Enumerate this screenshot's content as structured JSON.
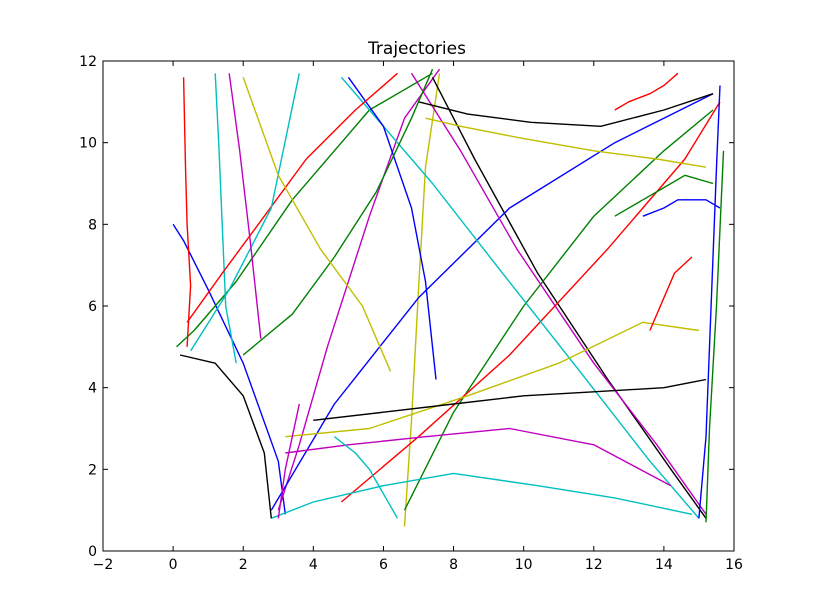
{
  "chart_data": {
    "type": "line",
    "title": "Trajectories",
    "xlabel": "",
    "ylabel": "",
    "xlim": [
      -2,
      16
    ],
    "ylim": [
      0,
      12
    ],
    "xticks": [
      -2,
      0,
      2,
      4,
      6,
      8,
      10,
      12,
      14,
      16
    ],
    "yticks": [
      0,
      2,
      4,
      6,
      8,
      10,
      12
    ],
    "xtick_labels": [
      "−2",
      "0",
      "2",
      "4",
      "6",
      "8",
      "10",
      "12",
      "14",
      "16"
    ],
    "ytick_labels": [
      "0",
      "2",
      "4",
      "6",
      "8",
      "10",
      "12"
    ],
    "grid": false,
    "legend": "none",
    "color_cycle": [
      "#0000ff",
      "#008000",
      "#ff0000",
      "#00bfbf",
      "#bf00bf",
      "#bfbf00",
      "#000000"
    ],
    "series": [
      {
        "x": [
          0.0,
          0.3,
          1.0,
          2.0,
          3.0,
          3.2
        ],
        "y": [
          8.0,
          7.6,
          6.4,
          4.6,
          2.2,
          0.9
        ]
      },
      {
        "x": [
          0.1,
          0.6,
          1.8,
          3.4,
          5.6,
          7.4
        ],
        "y": [
          5.0,
          5.4,
          6.6,
          8.6,
          10.8,
          11.7
        ]
      },
      {
        "x": [
          0.3,
          0.35,
          0.4,
          0.5,
          0.4
        ],
        "y": [
          11.6,
          9.5,
          8.0,
          6.5,
          5.0
        ]
      },
      {
        "x": [
          1.2,
          1.3,
          1.4,
          1.5,
          1.8
        ],
        "y": [
          11.7,
          10.0,
          8.0,
          6.0,
          4.6
        ]
      },
      {
        "x": [
          3.0,
          3.6,
          4.4,
          5.6,
          6.6,
          7.6
        ],
        "y": [
          1.0,
          2.6,
          5.0,
          8.2,
          10.6,
          11.8
        ]
      },
      {
        "x": [
          6.6,
          6.8,
          7.0,
          7.2,
          7.6
        ],
        "y": [
          0.6,
          3.2,
          6.4,
          9.4,
          11.7
        ]
      },
      {
        "x": [
          7.4,
          8.6,
          10.4,
          12.4,
          14.2,
          15.2
        ],
        "y": [
          11.6,
          9.6,
          6.8,
          4.2,
          2.0,
          0.8
        ]
      },
      {
        "x": [
          2.8,
          4.6,
          7.0,
          9.6,
          12.6,
          15.4
        ],
        "y": [
          1.0,
          3.6,
          6.2,
          8.4,
          10.0,
          11.2
        ]
      },
      {
        "x": [
          6.6,
          8.0,
          10.0,
          12.0,
          14.0,
          15.4
        ],
        "y": [
          1.0,
          3.4,
          6.0,
          8.2,
          9.8,
          10.8
        ]
      },
      {
        "x": [
          4.8,
          7.0,
          9.6,
          12.4,
          14.6,
          15.6
        ],
        "y": [
          1.2,
          2.8,
          4.8,
          7.4,
          9.6,
          11.0
        ]
      },
      {
        "x": [
          15.0,
          13.6,
          11.6,
          9.4,
          7.4,
          4.8
        ],
        "y": [
          0.8,
          2.2,
          4.4,
          6.8,
          9.0,
          11.6
        ]
      },
      {
        "x": [
          15.2,
          13.8,
          12.0,
          9.8,
          8.2,
          6.8
        ],
        "y": [
          0.9,
          2.6,
          4.6,
          7.4,
          9.8,
          11.7
        ]
      },
      {
        "x": [
          7.2,
          8.2,
          10.0,
          12.0,
          13.8,
          15.2
        ],
        "y": [
          10.6,
          10.4,
          10.1,
          9.8,
          9.6,
          9.4
        ]
      },
      {
        "x": [
          7.0,
          8.4,
          10.2,
          12.2,
          14.0,
          15.4
        ],
        "y": [
          11.0,
          10.7,
          10.5,
          10.4,
          10.8,
          11.2
        ]
      },
      {
        "x": [
          15.6,
          15.5,
          15.4,
          15.3,
          15.2,
          15.0
        ],
        "y": [
          11.4,
          9.4,
          7.2,
          5.0,
          2.8,
          0.8
        ]
      },
      {
        "x": [
          15.2,
          15.3,
          15.5,
          15.7
        ],
        "y": [
          0.7,
          3.0,
          6.0,
          9.8
        ]
      },
      {
        "x": [
          14.4,
          14.0,
          13.6,
          13.0,
          12.6
        ],
        "y": [
          11.7,
          11.4,
          11.2,
          11.0,
          10.8
        ]
      },
      {
        "x": [
          2.8,
          4.0,
          6.0,
          8.0,
          10.4,
          12.6,
          14.8
        ],
        "y": [
          0.8,
          1.2,
          1.6,
          1.9,
          1.6,
          1.3,
          0.9
        ]
      },
      {
        "x": [
          3.2,
          5.0,
          7.2,
          9.6,
          12.0,
          14.2
        ],
        "y": [
          2.4,
          2.6,
          2.8,
          3.0,
          2.6,
          1.6
        ]
      },
      {
        "x": [
          3.2,
          5.6,
          8.4,
          11.0,
          13.4,
          15.0
        ],
        "y": [
          2.8,
          3.0,
          3.8,
          4.6,
          5.6,
          5.4
        ]
      },
      {
        "x": [
          4.0,
          6.0,
          8.0,
          10.0,
          12.0,
          14.0,
          15.2
        ],
        "y": [
          3.2,
          3.4,
          3.6,
          3.8,
          3.9,
          4.0,
          4.2
        ]
      },
      {
        "x": [
          5.0,
          6.0,
          6.8,
          7.2,
          7.5
        ],
        "y": [
          11.6,
          10.4,
          8.4,
          6.6,
          4.2
        ]
      },
      {
        "x": [
          7.4,
          6.8,
          5.8,
          4.6,
          3.4,
          2.0
        ],
        "y": [
          11.8,
          10.6,
          8.8,
          7.2,
          5.8,
          4.8
        ]
      },
      {
        "x": [
          0.4,
          1.4,
          2.6,
          3.8,
          5.2,
          6.4
        ],
        "y": [
          5.6,
          6.8,
          8.2,
          9.6,
          10.8,
          11.7
        ]
      },
      {
        "x": [
          0.5,
          1.6,
          2.8,
          3.6
        ],
        "y": [
          4.9,
          6.4,
          8.4,
          11.7
        ]
      },
      {
        "x": [
          1.6,
          1.9,
          2.2,
          2.5
        ],
        "y": [
          11.7,
          9.8,
          7.6,
          5.2
        ]
      },
      {
        "x": [
          2.0,
          3.0,
          4.2,
          5.4,
          6.2
        ],
        "y": [
          11.6,
          9.2,
          7.4,
          6.0,
          4.4
        ]
      },
      {
        "x": [
          0.2,
          1.2,
          2.0,
          2.6,
          2.8
        ],
        "y": [
          4.8,
          4.6,
          3.8,
          2.4,
          0.8
        ]
      },
      {
        "x": [
          15.6,
          15.2,
          14.4,
          14.0,
          13.4
        ],
        "y": [
          8.4,
          8.6,
          8.6,
          8.4,
          8.2
        ]
      },
      {
        "x": [
          15.4,
          14.6,
          14.0,
          13.4,
          12.6
        ],
        "y": [
          9.0,
          9.2,
          8.9,
          8.6,
          8.2
        ]
      },
      {
        "x": [
          14.8,
          14.3,
          14.0,
          13.6
        ],
        "y": [
          7.2,
          6.8,
          6.2,
          5.4
        ]
      },
      {
        "x": [
          6.4,
          6.0,
          5.6,
          5.2,
          4.6
        ],
        "y": [
          0.8,
          1.4,
          2.0,
          2.4,
          2.8
        ]
      },
      {
        "x": [
          3.0,
          3.2,
          3.4,
          3.6
        ],
        "y": [
          0.8,
          2.0,
          2.8,
          3.6
        ]
      }
    ]
  }
}
